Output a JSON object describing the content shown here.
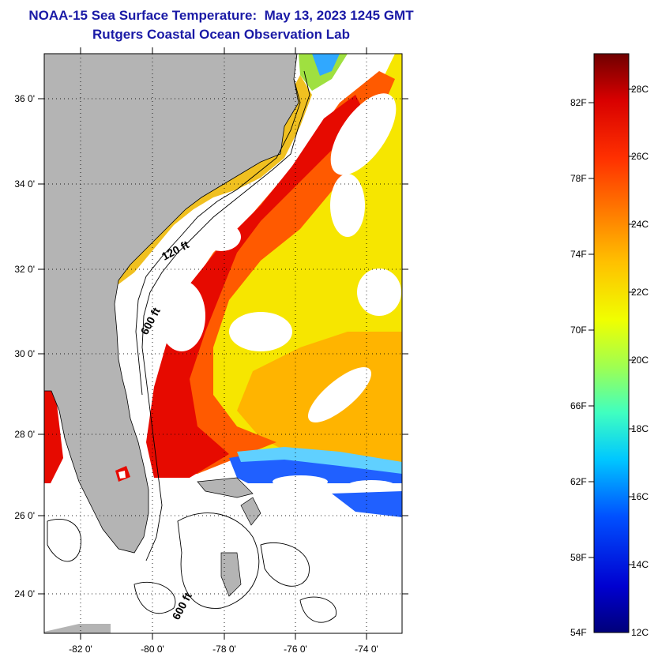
{
  "header": {
    "title_line1": "NOAA-15 Sea Surface Temperature:  May 13, 2023 1245 GMT",
    "title_line2": "Rutgers Coastal Ocean Observation Lab"
  },
  "map": {
    "lat_ticks": [
      "36 0'",
      "34 0'",
      "32 0'",
      "30 0'",
      "28 0'",
      "26 0'",
      "24 0'"
    ],
    "lon_ticks": [
      "-82 0'",
      "-80 0'",
      "-78 0'",
      "-76 0'",
      "-74 0'"
    ],
    "contour_labels": {
      "shelf_120": "120 ft",
      "shelf_600_north": "600 ft",
      "shelf_600_south": "600 ft"
    },
    "colors": {
      "land": "#b4b4b4",
      "cloud": "#ffffff",
      "gulf_stream": "#e60a00",
      "warm": "#ff5a00",
      "mid": "#ffb400",
      "cool": "#e6f000",
      "cold": "#2060ff"
    }
  },
  "colorbar": {
    "fahrenheit_labels": [
      "82F",
      "78F",
      "74F",
      "70F",
      "66F",
      "62F",
      "58F",
      "54F"
    ],
    "celsius_labels": [
      "28C",
      "26C",
      "24C",
      "22C",
      "20C",
      "18C",
      "16C",
      "14C",
      "12C"
    ]
  }
}
